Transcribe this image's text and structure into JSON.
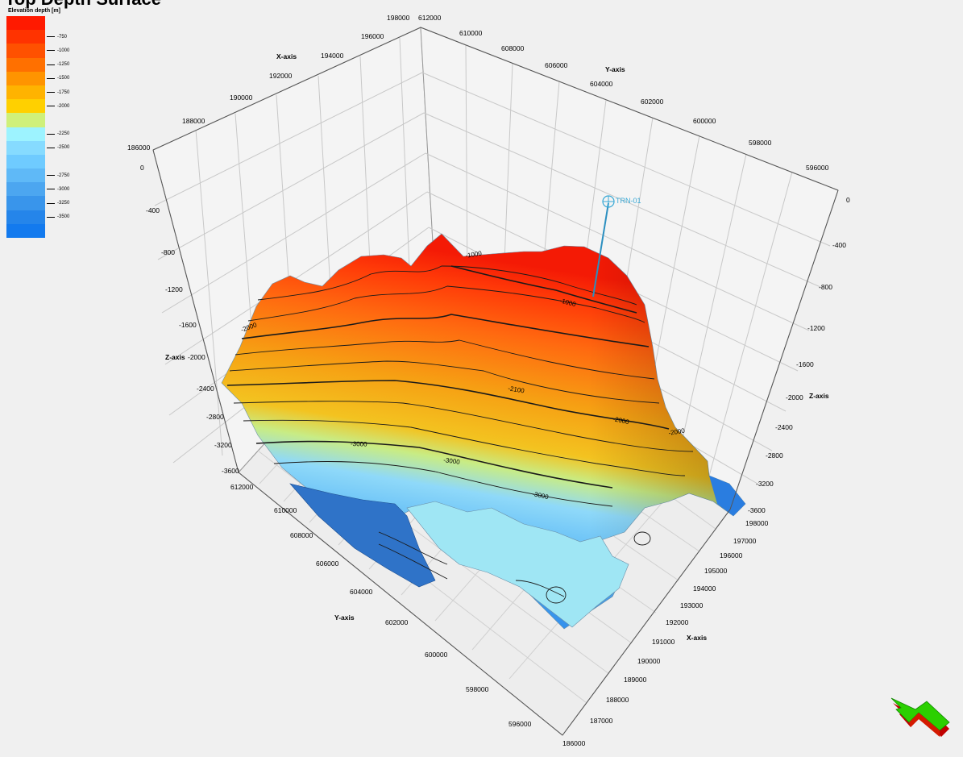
{
  "title": "Top Depth Surface",
  "legend": {
    "title": "Elevation depth [m]",
    "items": [
      {
        "color": "#ff1a00",
        "label": ""
      },
      {
        "color": "#ff3300",
        "label": "-750"
      },
      {
        "color": "#ff5100",
        "label": "-1000"
      },
      {
        "color": "#ff7000",
        "label": "-1250"
      },
      {
        "color": "#ff9400",
        "label": "-1500"
      },
      {
        "color": "#ffb300",
        "label": "-1750"
      },
      {
        "color": "#ffd000",
        "label": "-2000"
      },
      {
        "color": "#cff07a",
        "label": ""
      },
      {
        "color": "#9df3ff",
        "label": "-2250"
      },
      {
        "color": "#86dbff",
        "label": "-2500"
      },
      {
        "color": "#6fcbff",
        "label": ""
      },
      {
        "color": "#5fb9f7",
        "label": "-2750"
      },
      {
        "color": "#4ca6f0",
        "label": "-3000"
      },
      {
        "color": "#3995eb",
        "label": "-3250"
      },
      {
        "color": "#2585ea",
        "label": "-3500"
      },
      {
        "color": "#137aee",
        "label": ""
      }
    ]
  },
  "axes": {
    "x_axis_label": "X-axis",
    "y_axis_label": "Y-axis",
    "z_axis_label": "Z-axis",
    "top_x_ticks": [
      "186000",
      "188000",
      "190000",
      "192000",
      "194000",
      "196000",
      "198000"
    ],
    "top_y_ticks": [
      "612000",
      "610000",
      "608000",
      "606000",
      "604000",
      "602000",
      "600000",
      "598000",
      "596000"
    ],
    "left_z_ticks": [
      "0",
      "-400",
      "-800",
      "-1200",
      "-1600",
      "-2000",
      "-2400",
      "-2800",
      "-3200",
      "-3600"
    ],
    "right_z_ticks": [
      "0",
      "-400",
      "-800",
      "-1200",
      "-1600",
      "-2000",
      "-2400",
      "-2800",
      "-3200",
      "-3600"
    ],
    "bottom_y_ticks": [
      "612000",
      "610000",
      "608000",
      "606000",
      "604000",
      "602000",
      "600000",
      "598000",
      "596000"
    ],
    "bottom_x_ticks": [
      "198000",
      "197000",
      "196000",
      "195000",
      "194000",
      "193000",
      "192000",
      "191000",
      "190000",
      "189000",
      "188000",
      "187000",
      "186000"
    ]
  },
  "well": {
    "name": "TRN-01",
    "color": "#39a9d6"
  },
  "contour_labels": [
    "-1000",
    "-1000",
    "-2000",
    "-2100",
    "-2000",
    "-3000",
    "-3000",
    "-3000",
    "-2000"
  ],
  "navigator": {
    "icon": "navigation-arrow-icon",
    "color": "#2bd000"
  }
}
